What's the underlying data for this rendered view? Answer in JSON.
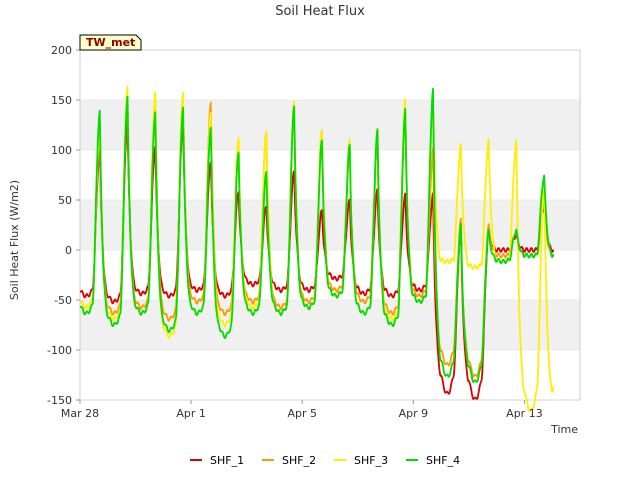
{
  "chart_data": {
    "type": "line",
    "title": "Soil Heat Flux",
    "xlabel": "Time",
    "ylabel": "Soil Heat Flux (W/m2)",
    "station_badge": "TW_met",
    "xlim": [
      0,
      18
    ],
    "ylim": [
      -150,
      200
    ],
    "x_tick_values": [
      0,
      4,
      8,
      12,
      16
    ],
    "x_tick_labels": [
      "Mar 28",
      "Apr 1",
      "Apr 5",
      "Apr 9",
      "Apr 13"
    ],
    "y_ticks": [
      -150,
      -100,
      -50,
      0,
      50,
      100,
      150,
      200
    ],
    "y_tick_labels": [
      "-150",
      "-100",
      "-50",
      "0",
      "50",
      "100",
      "150",
      "200"
    ],
    "bands": [
      [
        -100,
        -50
      ],
      [
        0,
        50
      ],
      [
        100,
        150
      ]
    ],
    "colors": {
      "SHF_1": "#dd0000",
      "SHF_2": "#ff9900",
      "SHF_3": "#ffee00",
      "SHF_4": "#00dd00",
      "band": "#f0f0f0",
      "grid": "#dddddd"
    },
    "daily_peaks": {
      "days": [
        0.72,
        1.72,
        2.72,
        3.72,
        4.72,
        5.72,
        6.72,
        7.72,
        8.72,
        9.72,
        10.72,
        11.72,
        12.72,
        13.72,
        14.72,
        15.72,
        16.72
      ],
      "SHF_1": [
        100,
        130,
        105,
        130,
        90,
        60,
        45,
        80,
        40,
        50,
        60,
        55,
        55,
        25,
        20,
        15,
        45
      ],
      "SHF_2": [
        130,
        155,
        150,
        155,
        150,
        100,
        120,
        145,
        120,
        100,
        110,
        140,
        100,
        30,
        25,
        20,
        50
      ],
      "SHF_3": [
        120,
        165,
        160,
        160,
        140,
        115,
        120,
        150,
        120,
        110,
        120,
        150,
        145,
        105,
        110,
        110,
        75
      ],
      "SHF_4": [
        140,
        155,
        140,
        145,
        125,
        100,
        80,
        145,
        110,
        105,
        120,
        140,
        160,
        25,
        20,
        20,
        75
      ]
    },
    "daily_mins": {
      "SHF_1": [
        -40,
        -45,
        -38,
        -40,
        -35,
        -40,
        -30,
        -35,
        -35,
        -25,
        -38,
        -40,
        -35,
        -125,
        -130,
        0,
        0
      ],
      "SHF_2": [
        -50,
        -55,
        -50,
        -60,
        -45,
        -55,
        -45,
        -50,
        -45,
        -35,
        -45,
        -55,
        -40,
        -100,
        -110,
        -5,
        -5
      ],
      "SHF_3": [
        -50,
        -60,
        -55,
        -75,
        -55,
        -65,
        -50,
        -55,
        -50,
        -40,
        -55,
        -60,
        -45,
        -10,
        -15,
        -10,
        -140
      ],
      "SHF_4": [
        -55,
        -65,
        -55,
        -70,
        -55,
        -75,
        -55,
        -55,
        -50,
        -40,
        -55,
        -65,
        -45,
        -110,
        -115,
        -10,
        -5
      ]
    },
    "series": [
      {
        "name": "SHF_1"
      },
      {
        "name": "SHF_2"
      },
      {
        "name": "SHF_3"
      },
      {
        "name": "SHF_4"
      }
    ],
    "legend_position": "bottom"
  }
}
